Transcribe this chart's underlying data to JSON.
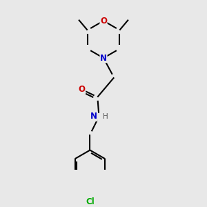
{
  "background_color": "#e8e8e8",
  "atom_color_N": "#0000cc",
  "atom_color_O_ring": "#cc0000",
  "atom_color_O_carbonyl": "#cc0000",
  "atom_color_Cl": "#00aa00",
  "bond_color": "#000000",
  "fig_width": 3.0,
  "fig_height": 3.0,
  "dpi": 100,
  "xlim": [
    0.5,
    5.5
  ],
  "ylim": [
    0.2,
    5.8
  ]
}
